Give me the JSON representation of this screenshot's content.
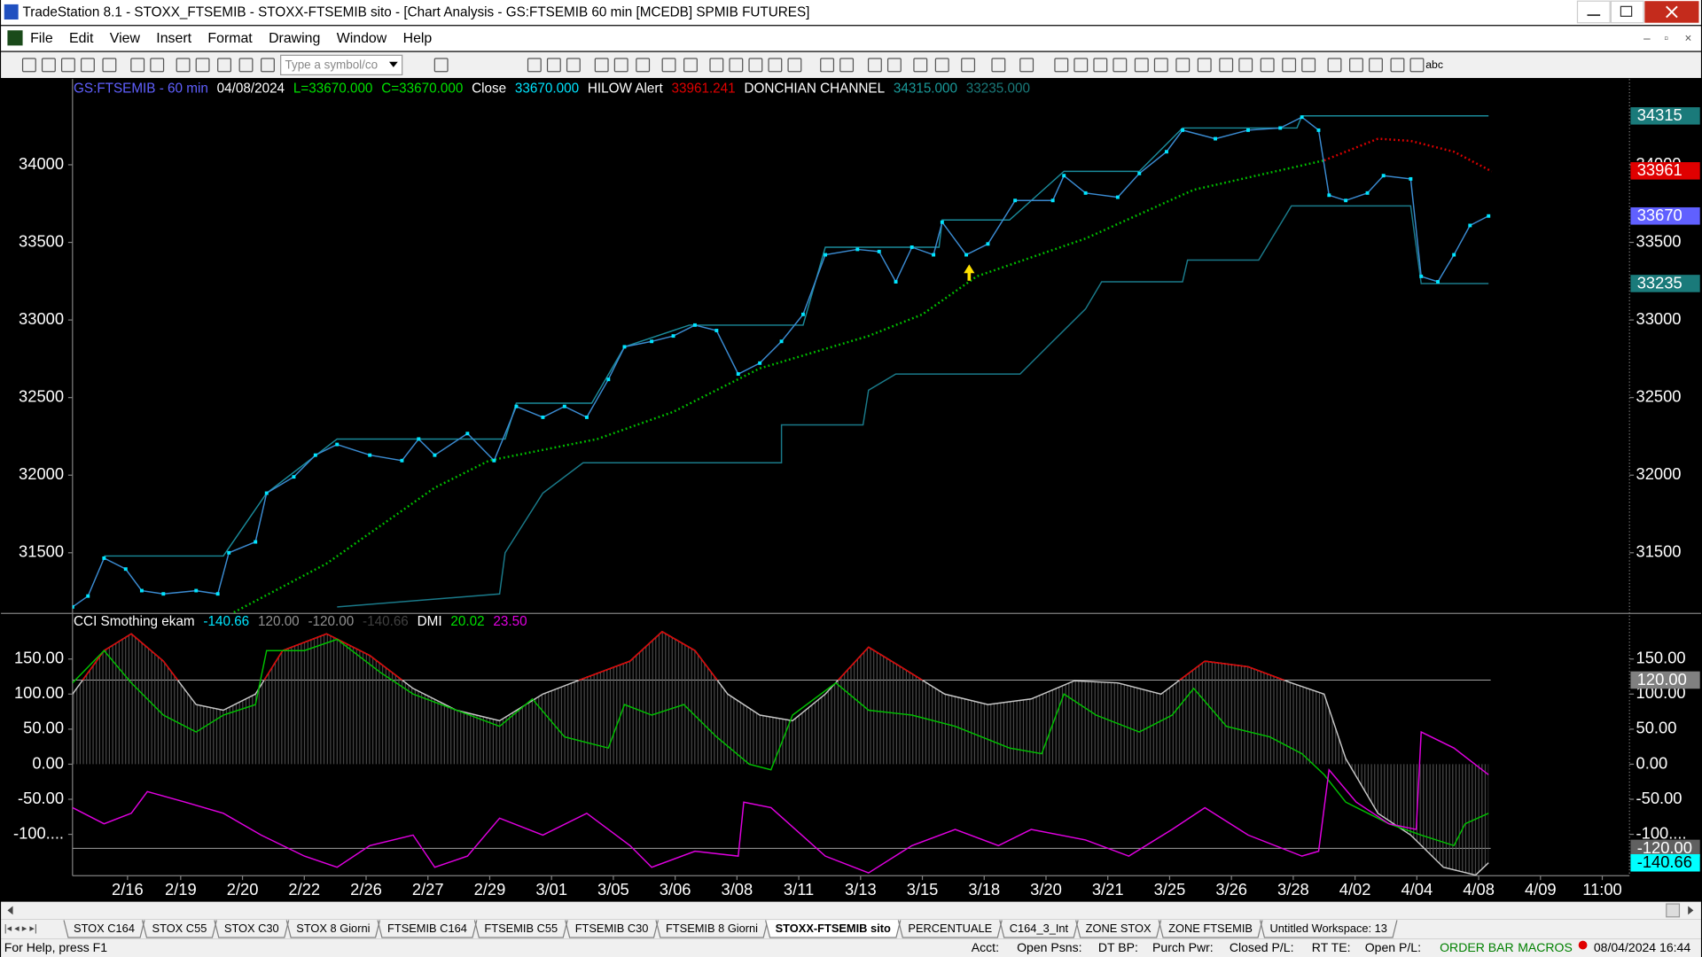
{
  "window": {
    "title": "TradeStation 8.1 - STOXX_FTSEMIB - STOXX-FTSEMIB sito - [Chart Analysis - GS:FTSEMIB  60 min  [MCEDB] SPMIB FUTURES]"
  },
  "menu": [
    "File",
    "Edit",
    "View",
    "Insert",
    "Format",
    "Drawing",
    "Window",
    "Help"
  ],
  "toolbar": {
    "symbol_placeholder": "Type a symbol/co",
    "text_tool": "abc"
  },
  "chart_data": [
    {
      "type": "line",
      "header": [
        {
          "text": "GS:FTSEMIB - 60 min",
          "color": "#6060ff"
        },
        {
          "text": "04/08/2024",
          "color": "#ffffff"
        },
        {
          "text": "L=33670.000",
          "color": "#00e000"
        },
        {
          "text": "C=33670.000",
          "color": "#00e000"
        },
        {
          "text": "Close",
          "color": "#ffffff"
        },
        {
          "text": "33670.000",
          "color": "#00e5ff"
        },
        {
          "text": "HILOW Alert",
          "color": "#ffffff"
        },
        {
          "text": "33961.241",
          "color": "#e00000"
        },
        {
          "text": "DONCHIAN CHANNEL",
          "color": "#ffffff"
        },
        {
          "text": "34315.000",
          "color": "#1a9a9a"
        },
        {
          "text": "33235.000",
          "color": "#1a7a7a"
        }
      ],
      "xlim": [
        0,
        25.19
      ],
      "ylim": [
        31109,
        34552
      ],
      "yticks": [
        31500,
        32000,
        32500,
        33000,
        33500,
        34000
      ],
      "series": [
        {
          "color": "#1a8a9a",
          "style": "solid",
          "x": [
            0.51,
            2.44,
            3.14,
            4.28,
            7.0,
            7.18,
            8.4,
            8.93,
            9.98,
            11.82,
            12.18,
            14.02,
            14.07,
            15.16,
            16.04,
            17.26,
            17.96,
            19.81,
            19.89,
            22.91
          ],
          "values": [
            31479,
            31479,
            31884,
            32233,
            32233,
            32464,
            32464,
            32827,
            32967,
            32967,
            33469,
            33469,
            33644,
            33644,
            33958,
            33958,
            34237,
            34237,
            34315,
            34315
          ]
        },
        {
          "color": "#1a7a8a",
          "style": "solid",
          "x": [
            4.28,
            6.91,
            7.0,
            7.61,
            8.26,
            11.47,
            11.47,
            12.79,
            12.88,
            13.32,
            15.33,
            15.86,
            16.39,
            16.65,
            17.96,
            18.04,
            19.19,
            19.72,
            21.65,
            21.82,
            22.91
          ],
          "values": [
            31151,
            31235,
            31500,
            31884,
            32080,
            32080,
            32324,
            32324,
            32548,
            32652,
            32652,
            32862,
            33071,
            33246,
            33246,
            33386,
            33386,
            33735,
            33735,
            33235,
            33235
          ]
        },
        {
          "color": "#00c000",
          "style": "dotted",
          "x": [
            2.61,
            4.11,
            5.86,
            6.74,
            8.49,
            9.72,
            11.12,
            12.88,
            13.75,
            14.63,
            16.39,
            18.14,
            20.25
          ],
          "values": [
            31116,
            31430,
            31919,
            32094,
            32233,
            32408,
            32688,
            32897,
            33036,
            33281,
            33525,
            33839,
            34028
          ]
        },
        {
          "color": "#e00000",
          "style": "dotted",
          "x": [
            20.25,
            21.12,
            21.65,
            22.35,
            22.96
          ],
          "values": [
            34028,
            34168,
            34154,
            34084,
            33958
          ]
        },
        {
          "color": "#00e5ff",
          "line_color": "#3a8ad0",
          "style": "solid",
          "markers": true,
          "x": [
            0,
            0.25,
            0.51,
            0.86,
            1.12,
            1.47,
            2.0,
            2.35,
            2.53,
            2.96,
            3.14,
            3.58,
            3.93,
            4.28,
            4.81,
            5.33,
            5.6,
            5.86,
            6.39,
            6.82,
            7.18,
            7.61,
            7.96,
            8.32,
            8.67,
            8.93,
            9.37,
            9.72,
            10.07,
            10.42,
            10.77,
            11.12,
            11.47,
            11.82,
            12.18,
            12.7,
            13.05,
            13.32,
            13.58,
            13.93,
            14.07,
            14.46,
            14.81,
            15.25,
            15.86,
            16.04,
            16.39,
            16.91,
            17.26,
            17.7,
            17.96,
            18.49,
            19.02,
            19.54,
            19.89,
            20.16,
            20.33,
            20.6,
            20.95,
            21.21,
            21.65,
            21.82,
            22.09,
            22.35,
            22.61,
            22.91
          ],
          "values": [
            31151,
            31221,
            31465,
            31395,
            31256,
            31235,
            31256,
            31235,
            31500,
            31570,
            31884,
            31989,
            32129,
            32198,
            32129,
            32094,
            32233,
            32129,
            32268,
            32094,
            32443,
            32373,
            32443,
            32373,
            32617,
            32827,
            32862,
            32897,
            32967,
            32932,
            32652,
            32722,
            32862,
            33036,
            33420,
            33455,
            33441,
            33246,
            33469,
            33420,
            33630,
            33420,
            33490,
            33770,
            33770,
            33930,
            33818,
            33791,
            33944,
            34084,
            34223,
            34168,
            34223,
            34237,
            34307,
            34223,
            33804,
            33770,
            33818,
            33930,
            33909,
            33281,
            33246,
            33420,
            33609,
            33670
          ]
        }
      ],
      "price_markers": [
        {
          "value": 34315,
          "color": "#1a7a7a"
        },
        {
          "value": 33961,
          "color": "#e00000"
        },
        {
          "value": 33670,
          "color": "#6060ff"
        },
        {
          "value": 33235,
          "color": "#1a7a7a"
        }
      ]
    },
    {
      "type": "line",
      "header": [
        {
          "text": "CCI Smothing ekam",
          "color": "#ffffff"
        },
        {
          "text": "-140.66",
          "color": "#00e5ff"
        },
        {
          "text": "120.00",
          "color": "#909090"
        },
        {
          "text": "-120.00",
          "color": "#909090"
        },
        {
          "text": "-140.66",
          "color": "#404040"
        },
        {
          "text": "DMI",
          "color": "#ffffff"
        },
        {
          "text": "20.02",
          "color": "#00e000"
        },
        {
          "text": "23.50",
          "color": "#e000e0"
        }
      ],
      "xlim": [
        0,
        25.19
      ],
      "ylim": [
        -159,
        215
      ],
      "yticks": [
        {
          "value": 150,
          "label": "150.00"
        },
        {
          "value": 100,
          "label": "100.00"
        },
        {
          "value": 50,
          "label": "50.00"
        },
        {
          "value": 0,
          "label": "0.00"
        },
        {
          "value": -50,
          "label": "-50.00"
        },
        {
          "value": -100,
          "label": "-100...."
        }
      ],
      "xticks": [
        {
          "value": 0.89,
          "label": "2/16"
        },
        {
          "value": 1.75,
          "label": "2/19"
        },
        {
          "value": 2.75,
          "label": "2/20"
        },
        {
          "value": 3.75,
          "label": "2/22"
        },
        {
          "value": 4.75,
          "label": "2/26"
        },
        {
          "value": 5.75,
          "label": "2/27"
        },
        {
          "value": 6.75,
          "label": "2/29"
        },
        {
          "value": 7.75,
          "label": "3/01"
        },
        {
          "value": 8.75,
          "label": "3/05"
        },
        {
          "value": 9.75,
          "label": "3/06"
        },
        {
          "value": 10.75,
          "label": "3/08"
        },
        {
          "value": 11.75,
          "label": "3/11"
        },
        {
          "value": 12.75,
          "label": "3/13"
        },
        {
          "value": 13.75,
          "label": "3/15"
        },
        {
          "value": 14.75,
          "label": "3/18"
        },
        {
          "value": 15.75,
          "label": "3/20"
        },
        {
          "value": 16.75,
          "label": "3/21"
        },
        {
          "value": 17.75,
          "label": "3/25"
        },
        {
          "value": 18.75,
          "label": "3/26"
        },
        {
          "value": 19.75,
          "label": "3/28"
        },
        {
          "value": 20.75,
          "label": "4/02"
        },
        {
          "value": 21.75,
          "label": "4/04"
        },
        {
          "value": 22.75,
          "label": "4/08"
        },
        {
          "value": 23.75,
          "label": "4/09"
        },
        {
          "value": 24.75,
          "label": "11:00"
        }
      ],
      "hlines": [
        120,
        -120
      ],
      "series": [
        {
          "color": "#c8c8c8",
          "over_color": "#e00000",
          "histogram": true,
          "x": [
            0,
            0.51,
            0.95,
            1.47,
            2.0,
            2.44,
            2.96,
            3.4,
            4.11,
            4.81,
            5.51,
            6.21,
            6.91,
            7.61,
            8.32,
            9.02,
            9.54,
            10.07,
            10.6,
            11.12,
            11.65,
            12.18,
            12.88,
            13.4,
            14.11,
            14.81,
            15.51,
            16.21,
            16.91,
            17.61,
            18.32,
            19.02,
            19.72,
            20.25,
            20.6,
            21.12,
            21.65,
            22.18,
            22.7,
            22.91
          ],
          "values": [
            100,
            162,
            186,
            147,
            85,
            77,
            100,
            162,
            186,
            155,
            108,
            77,
            62,
            100,
            124,
            147,
            189,
            162,
            100,
            70,
            62,
            100,
            167,
            139,
            100,
            85,
            93,
            119,
            116,
            100,
            147,
            139,
            116,
            100,
            8,
            -70,
            -101,
            -147,
            -158,
            -140.66
          ]
        },
        {
          "color": "#00c000",
          "x": [
            0,
            0.51,
            0.95,
            1.47,
            2.0,
            2.44,
            2.96,
            3.14,
            3.75,
            4.28,
            4.98,
            5.51,
            6.21,
            6.91,
            7.44,
            7.96,
            8.67,
            8.93,
            9.37,
            9.89,
            10.42,
            10.95,
            11.3,
            11.65,
            12.35,
            12.88,
            13.58,
            14.28,
            15.16,
            15.68,
            16.04,
            16.56,
            17.26,
            17.79,
            18.14,
            18.67,
            19.37,
            19.89,
            20.25,
            20.6,
            21.3,
            21.82,
            22.35,
            22.53,
            22.91
          ],
          "values": [
            116,
            162,
            116,
            70,
            46,
            70,
            85,
            162,
            162,
            178,
            131,
            100,
            77,
            54,
            93,
            39,
            23,
            85,
            70,
            85,
            39,
            0,
            -8,
            70,
            116,
            77,
            70,
            54,
            23,
            15,
            100,
            70,
            46,
            70,
            108,
            54,
            39,
            15,
            -15,
            -54,
            -85,
            -101,
            -116,
            -85,
            -70
          ]
        },
        {
          "color": "#e000e0",
          "x": [
            0,
            0.51,
            0.95,
            1.21,
            1.82,
            2.44,
            3.05,
            3.75,
            4.28,
            4.81,
            5.51,
            5.86,
            6.39,
            6.91,
            7.61,
            8.32,
            9.02,
            9.37,
            10.07,
            10.77,
            10.86,
            11.3,
            12.18,
            12.88,
            13.58,
            14.28,
            14.98,
            15.51,
            16.39,
            17.09,
            17.79,
            18.32,
            19.02,
            19.89,
            20.16,
            20.33,
            20.77,
            21.3,
            21.74,
            21.82,
            22.35,
            22.91
          ],
          "values": [
            -62,
            -85,
            -70,
            -39,
            -54,
            -70,
            -101,
            -131,
            -147,
            -116,
            -101,
            -147,
            -131,
            -77,
            -101,
            -70,
            -116,
            -147,
            -124,
            -131,
            -54,
            -62,
            -131,
            -155,
            -116,
            -93,
            -116,
            -93,
            -108,
            -131,
            -93,
            -62,
            -101,
            -131,
            -124,
            -8,
            -54,
            -85,
            -93,
            46,
            23,
            -15
          ]
        }
      ],
      "markers": [
        {
          "value": 120,
          "label": "120.00",
          "color": "#808080"
        },
        {
          "value": -120,
          "label": "-120.00",
          "color": "#606060"
        },
        {
          "value": -140.66,
          "label": "-140.66",
          "color": "#00ffff"
        }
      ]
    }
  ],
  "tabs": [
    "STOX C164",
    "STOX C55",
    "STOX  C30",
    "STOX 8 Giorni",
    "FTSEMIB C164",
    "FTSEMIB C55",
    "FTSEMIB C30",
    "FTSEMIB  8 Giorni",
    "STOXX-FTSEMIB sito",
    "PERCENTUALE",
    "C164_3_Int",
    "ZONE STOX",
    "ZONE FTSEMIB",
    "Untitled Workspace:  13"
  ],
  "active_tab": 8,
  "status_bar": {
    "help": "For Help, press F1",
    "fields": [
      "Acct:",
      "Open Psns:",
      "DT BP:",
      "Purch Pwr:",
      "Closed P/L:",
      "RT TE:",
      "Open P/L:"
    ],
    "order_bar": "ORDER BAR",
    "macros": "MACROS",
    "datetime": "08/04/2024 16:44"
  }
}
